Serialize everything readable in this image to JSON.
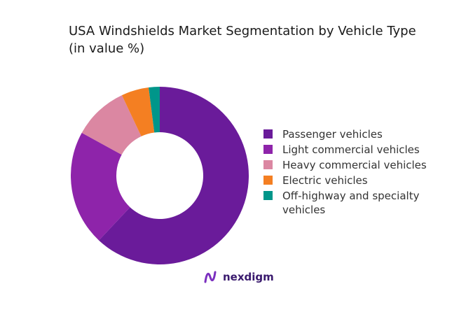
{
  "title_line1": "USA Windshields Market Segmentation by Vehicle Type",
  "title_line2": "(in value %)",
  "brand": "nexdigm",
  "chart_data": {
    "type": "pie",
    "donut": true,
    "title": "USA Windshields Market Segmentation by Vehicle Type (in value %)",
    "legend_position": "right",
    "categories": [
      "Passenger vehicles",
      "Light commercial vehicles",
      "Heavy commercial vehicles",
      "Electric vehicles",
      "Off-highway and specialty vehicles"
    ],
    "values": [
      62,
      21,
      10,
      5,
      2
    ],
    "colors": [
      "#6A1B9A",
      "#8E24AA",
      "#DB87A2",
      "#F47F22",
      "#00968A"
    ]
  }
}
